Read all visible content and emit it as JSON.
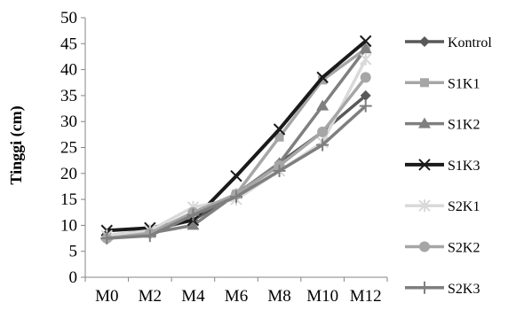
{
  "chart_data": {
    "type": "line",
    "title": "",
    "xlabel": "",
    "ylabel": "Tinggi (cm)",
    "ylim": [
      0,
      50
    ],
    "yticks": [
      "0",
      "5",
      "10",
      "15",
      "20",
      "25",
      "30",
      "35",
      "40",
      "45",
      "50"
    ],
    "categories": [
      "M0",
      "M2",
      "M4",
      "M6",
      "M8",
      "M10",
      "M12"
    ],
    "grid": false,
    "legend_position": "right",
    "series": [
      {
        "name": "Kontrol",
        "color": "#595959",
        "marker": "diamond",
        "values": [
          8,
          9,
          11,
          16,
          22,
          28,
          35
        ]
      },
      {
        "name": "S1K1",
        "color": "#a6a6a6",
        "marker": "square",
        "values": [
          8,
          8.5,
          12,
          16,
          27,
          38,
          44
        ]
      },
      {
        "name": "S1K2",
        "color": "#7f7f7f",
        "marker": "triangle",
        "values": [
          8,
          8.5,
          10,
          16,
          22,
          33,
          44
        ]
      },
      {
        "name": "S1K3",
        "color": "#1a1a1a",
        "marker": "x",
        "values": [
          9,
          9.5,
          11,
          19.5,
          28.5,
          38.5,
          45.5
        ]
      },
      {
        "name": "S2K1",
        "color": "#d9d9d9",
        "marker": "star",
        "values": [
          8,
          9,
          13.5,
          15,
          20.5,
          26,
          42
        ]
      },
      {
        "name": "S2K2",
        "color": "#a6a6a6",
        "marker": "circle",
        "values": [
          7.5,
          8.5,
          12.5,
          16,
          21.5,
          28,
          38.5
        ]
      },
      {
        "name": "S2K3",
        "color": "#7f7f7f",
        "marker": "plus",
        "values": [
          7.5,
          8,
          12,
          15.5,
          20.5,
          25.5,
          33
        ]
      }
    ]
  }
}
